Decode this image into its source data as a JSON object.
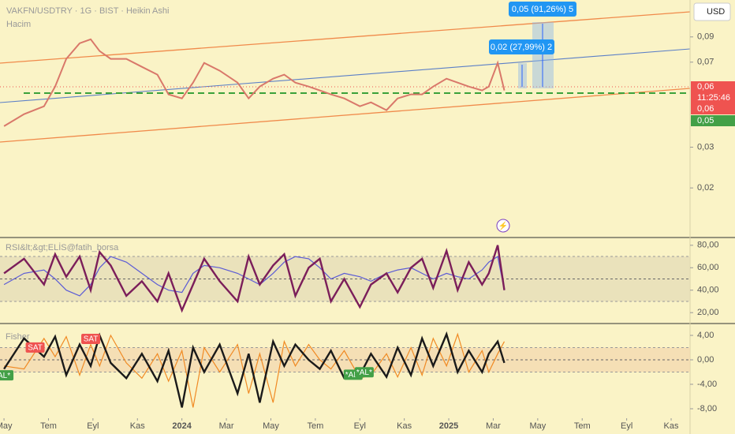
{
  "chart_data": [
    {
      "type": "line",
      "title": "VAKFN/USDTRY · 1G · BIST · Heikin Ashi",
      "subtitle": "Hacim",
      "currency": "USD",
      "log_scale": true,
      "xlim": [
        -0.18,
        30.85
      ],
      "ylim": [
        0.0123,
        0.13
      ],
      "yticks": [
        {
          "value": 0.09,
          "label": "0,09"
        },
        {
          "value": 0.07,
          "label": "0,07"
        },
        {
          "value": 0.03,
          "label": "0,03"
        },
        {
          "value": 0.02,
          "label": "0,02"
        }
      ],
      "x": [
        0,
        0.9,
        1.8,
        2.3,
        2.8,
        3.4,
        3.9,
        4.3,
        4.8,
        5.5,
        6.2,
        6.9,
        7.4,
        8.0,
        8.5,
        9.0,
        9.7,
        10.5,
        11.0,
        11.5,
        12.1,
        12.6,
        13.1,
        13.7,
        14.2,
        14.7,
        15.3,
        16.0,
        16.5,
        17.2,
        17.7,
        18.3,
        18.8,
        19.3,
        19.9,
        20.4,
        20.9,
        21.5,
        21.8,
        22.2,
        22.5
      ],
      "series": [
        {
          "color": "#d9786a",
          "values": [
            0.037,
            0.0417,
            0.0451,
            0.0549,
            0.0723,
            0.0845,
            0.0879,
            0.0782,
            0.0723,
            0.0723,
            0.0668,
            0.0618,
            0.0508,
            0.0488,
            0.0571,
            0.0695,
            0.0643,
            0.0571,
            0.0488,
            0.0549,
            0.0594,
            0.0618,
            0.0571,
            0.0549,
            0.0528,
            0.0508,
            0.0488,
            0.0451,
            0.0469,
            0.0434,
            0.0488,
            0.0508,
            0.0508,
            0.0549,
            0.0594,
            0.0571,
            0.0549,
            0.0528,
            0.0549,
            0.0695,
            0.0528
          ]
        }
      ],
      "price_labels": [
        {
          "text": "0,06",
          "color": "#ef5350"
        },
        {
          "text": "11:25:46",
          "color": "#ef5350"
        },
        {
          "text": "0,06",
          "color": "#ef5350"
        },
        {
          "text": "0,05",
          "color": "#43a047"
        }
      ],
      "annotations": [
        "0,05 (91,26%) 5",
        "0,02 (27,99%) 2"
      ]
    },
    {
      "type": "line",
      "title": "RSI&lt;&gt;ELİS@fatih_borsa",
      "xlim": [
        -0.18,
        30.85
      ],
      "ylim": [
        11.7,
        84.1
      ],
      "band": [
        30,
        70
      ],
      "midline": 50,
      "yticks": [
        {
          "value": 80,
          "label": "80,00"
        },
        {
          "value": 60,
          "label": "60,00"
        },
        {
          "value": 40,
          "label": "40,00"
        },
        {
          "value": 20,
          "label": "20,00"
        }
      ],
      "x": [
        0,
        0.9,
        1.8,
        2.3,
        2.8,
        3.4,
        3.9,
        4.3,
        4.8,
        5.5,
        6.2,
        6.9,
        7.4,
        8.0,
        8.5,
        9.0,
        9.7,
        10.5,
        11.0,
        11.5,
        12.1,
        12.6,
        13.1,
        13.7,
        14.2,
        14.7,
        15.3,
        16.0,
        16.5,
        17.2,
        17.7,
        18.3,
        18.8,
        19.3,
        19.9,
        20.4,
        20.9,
        21.5,
        21.8,
        22.2,
        22.5
      ],
      "series": [
        {
          "color": "#5b5bd6",
          "values": [
            45,
            55,
            58,
            50,
            40,
            35,
            45,
            60,
            70,
            65,
            55,
            45,
            40,
            38,
            55,
            62,
            60,
            55,
            50,
            45,
            55,
            65,
            70,
            68,
            60,
            50,
            55,
            52,
            48,
            55,
            58,
            60,
            55,
            50,
            55,
            52,
            50,
            58,
            65,
            70,
            40
          ]
        },
        {
          "color": "#7b1e5a",
          "values": [
            55,
            68,
            45,
            72,
            52,
            70,
            40,
            74,
            62,
            35,
            48,
            30,
            55,
            22,
            45,
            68,
            48,
            30,
            70,
            45,
            62,
            72,
            35,
            60,
            68,
            30,
            50,
            25,
            45,
            55,
            38,
            60,
            68,
            42,
            75,
            40,
            65,
            45,
            55,
            80,
            40
          ]
        }
      ]
    },
    {
      "type": "line",
      "title": "Fisher",
      "xlim": [
        -0.18,
        30.85
      ],
      "ylim": [
        -9.55,
        5.68
      ],
      "band": [
        -2,
        2
      ],
      "midline": 0,
      "yticks": [
        {
          "value": 4,
          "label": "4,00"
        },
        {
          "value": 0,
          "label": "0,00"
        },
        {
          "value": -4,
          "label": "-4,00"
        },
        {
          "value": -8,
          "label": "-8,00"
        }
      ],
      "xticks": [
        {
          "value": 0,
          "label": "May"
        },
        {
          "value": 2,
          "label": "Tem"
        },
        {
          "value": 4,
          "label": "Eyl"
        },
        {
          "value": 6,
          "label": "Kas"
        },
        {
          "value": 8,
          "label": "2024"
        },
        {
          "value": 10,
          "label": "Mar"
        },
        {
          "value": 12,
          "label": "May"
        },
        {
          "value": 14,
          "label": "Tem"
        },
        {
          "value": 16,
          "label": "Eyl"
        },
        {
          "value": 18,
          "label": "Kas"
        },
        {
          "value": 20,
          "label": "2025"
        },
        {
          "value": 22,
          "label": "Mar"
        },
        {
          "value": 24,
          "label": "May"
        },
        {
          "value": 26,
          "label": "Tem"
        },
        {
          "value": 28,
          "label": "Eyl"
        },
        {
          "value": 30,
          "label": "Kas"
        }
      ],
      "x": [
        0,
        0.9,
        1.8,
        2.3,
        2.8,
        3.4,
        3.9,
        4.3,
        4.8,
        5.5,
        6.2,
        6.9,
        7.4,
        8.0,
        8.5,
        9.0,
        9.7,
        10.5,
        11.0,
        11.5,
        12.1,
        12.6,
        13.1,
        13.7,
        14.2,
        14.7,
        15.3,
        16.0,
        16.5,
        17.2,
        17.7,
        18.3,
        18.8,
        19.3,
        19.9,
        20.4,
        20.9,
        21.5,
        21.8,
        22.2,
        22.5
      ],
      "series": [
        {
          "color": "#f08a24",
          "values": [
            -1,
            -1.5,
            3.5,
            0.5,
            3.8,
            -2.5,
            2.5,
            -1,
            4,
            -0.5,
            -3,
            1,
            -3.5,
            1.5,
            -7.8,
            2,
            -2,
            2.5,
            -5.5,
            1,
            -7,
            3,
            -1,
            2.5,
            0,
            -1.5,
            1.5,
            -3,
            -2.5,
            1,
            -2.8,
            2,
            -2.5,
            3.5,
            -1,
            4.2,
            -2,
            1.5,
            -2,
            1,
            3
          ]
        },
        {
          "color": "#1a1a1a",
          "values": [
            -1.5,
            3.5,
            0.5,
            3.8,
            -2.5,
            2.5,
            -1,
            4,
            -0.5,
            -3,
            1,
            -3.5,
            1.5,
            -7.8,
            2,
            -2,
            2.5,
            -5.5,
            1,
            -7,
            3,
            -1,
            2.5,
            0,
            -1.5,
            1.5,
            -3,
            -2.5,
            1,
            -2.8,
            2,
            -2.5,
            3.5,
            -1,
            4.2,
            -2,
            1.5,
            -2,
            1,
            3,
            -0.5
          ]
        }
      ],
      "signals": [
        {
          "label": "SAT",
          "color": "#ef5350",
          "x": 1.4,
          "value": 1.95
        },
        {
          "label": "SAT",
          "color": "#ef5350",
          "x": 3.9,
          "value": 3.35
        },
        {
          "label": "AL*",
          "color": "#43a047",
          "x": 0,
          "value": -2.6
        },
        {
          "label": "*AL*",
          "color": "#43a047",
          "x": 15.7,
          "value": -2.5
        },
        {
          "label": "*AL*",
          "color": "#43a047",
          "x": 16.2,
          "value": -2.1
        }
      ]
    }
  ]
}
